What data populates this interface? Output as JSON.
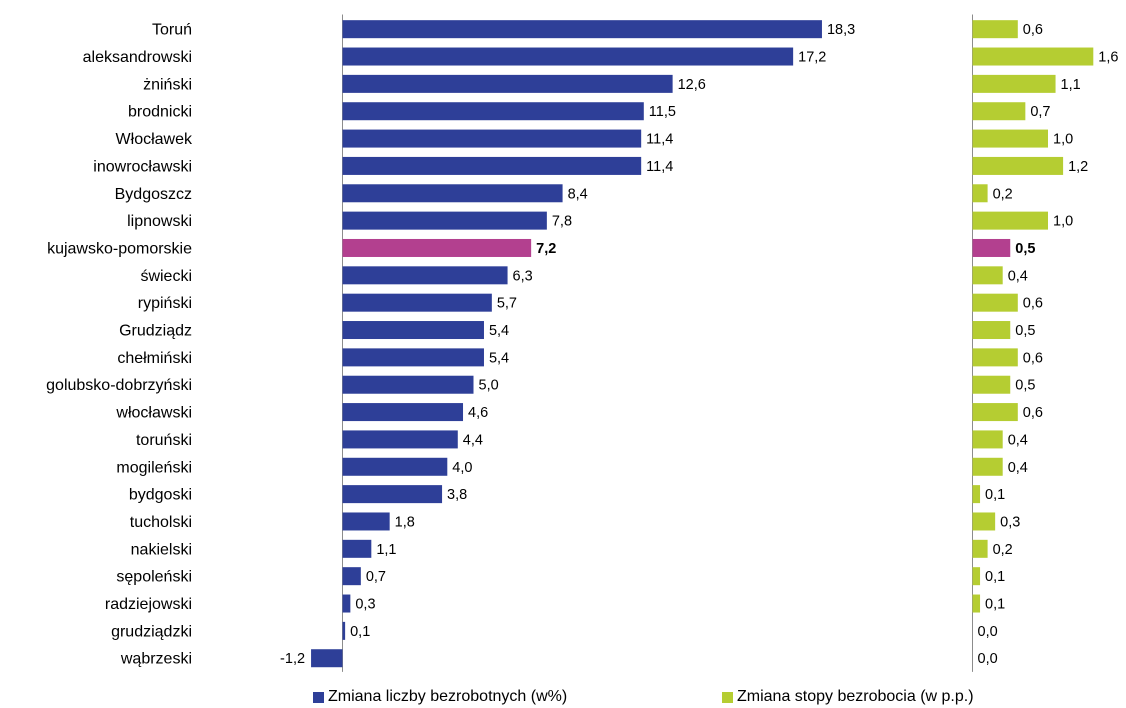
{
  "chart_data": {
    "type": "bar",
    "orientation": "horizontal",
    "categories": [
      "Toruń",
      "aleksandrowski",
      "żniński",
      "brodnicki",
      "Włocławek",
      "inowrocławski",
      "Bydgoszcz",
      "lipnowski",
      "kujawsko-pomorskie",
      "świecki",
      "rypiński",
      "Grudziądz",
      "chełmiński",
      "golubsko-dobrzyński",
      "włocławski",
      "toruński",
      "mogileński",
      "bydgoski",
      "tucholski",
      "nakielski",
      "sępoleński",
      "radziejowski",
      "grudziądzki",
      "wąbrzeski"
    ],
    "highlight_category": "kujawsko-pomorskie",
    "series": [
      {
        "name": "Zmiana liczby bezrobotnych (w%)",
        "color": "#2E3F98",
        "highlight_color": "#B3408F",
        "values": [
          18.3,
          17.2,
          12.6,
          11.5,
          11.4,
          11.4,
          8.4,
          7.8,
          7.2,
          6.3,
          5.7,
          5.4,
          5.4,
          5.0,
          4.6,
          4.4,
          4.0,
          3.8,
          1.8,
          1.1,
          0.7,
          0.3,
          0.1,
          -1.2
        ],
        "value_labels": [
          "18,3",
          "17,2",
          "12,6",
          "11,5",
          "11,4",
          "11,4",
          "8,4",
          "7,8",
          "7,2",
          "6,3",
          "5,7",
          "5,4",
          "5,4",
          "5,0",
          "4,6",
          "4,4",
          "4,0",
          "3,8",
          "1,8",
          "1,1",
          "0,7",
          "0,3",
          "0,1",
          "-1,2"
        ]
      },
      {
        "name": "Zmiana stopy bezrobocia (w p.p.)",
        "color": "#B5CD32",
        "highlight_color": "#B3408F",
        "values": [
          0.6,
          1.6,
          1.1,
          0.7,
          1.0,
          1.2,
          0.2,
          1.0,
          0.5,
          0.4,
          0.6,
          0.5,
          0.6,
          0.5,
          0.6,
          0.4,
          0.4,
          0.1,
          0.3,
          0.2,
          0.1,
          0.1,
          0.0,
          0.0
        ],
        "value_labels": [
          "0,6",
          "1,6",
          "1,1",
          "0,7",
          "1,0",
          "1,2",
          "0,2",
          "1,0",
          "0,5",
          "0,4",
          "0,6",
          "0,5",
          "0,6",
          "0,5",
          "0,6",
          "0,4",
          "0,4",
          "0,1",
          "0,3",
          "0,2",
          "0,1",
          "0,1",
          "0,0",
          "0,0"
        ]
      }
    ],
    "legend": {
      "position": "bottom"
    },
    "grid": false
  }
}
